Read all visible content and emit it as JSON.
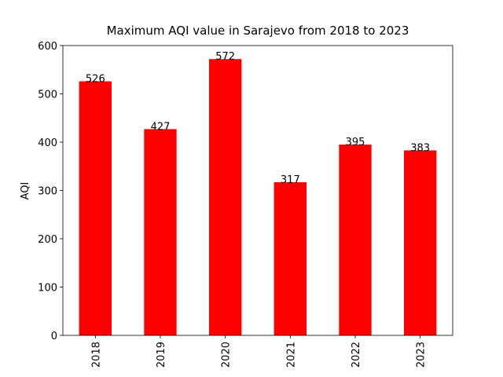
{
  "chart_data": {
    "type": "bar",
    "title": "Maximum AQI value in Sarajevo from 2018 to 2023",
    "ylabel": "AQI",
    "categories": [
      "2018",
      "2019",
      "2020",
      "2021",
      "2022",
      "2023"
    ],
    "values": [
      526,
      427,
      572,
      317,
      395,
      383
    ],
    "color": "#ff0000",
    "ylim": [
      0,
      600
    ],
    "yticks": [
      0,
      100,
      200,
      300,
      400,
      500,
      600
    ]
  }
}
